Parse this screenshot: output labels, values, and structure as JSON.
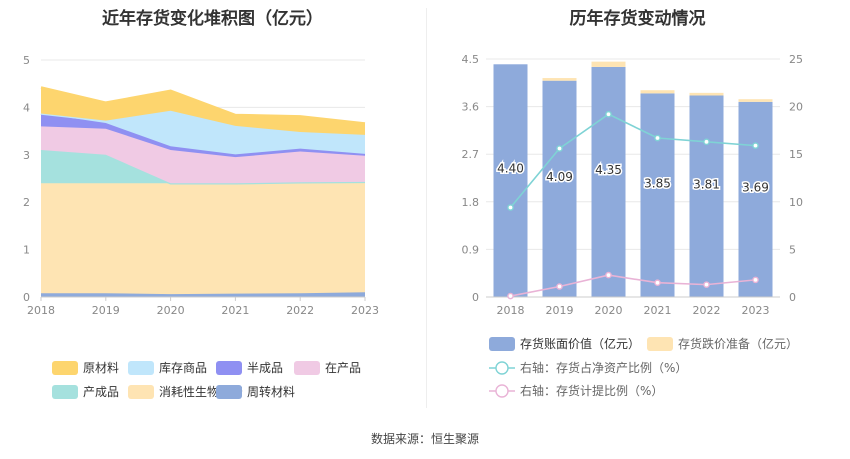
{
  "source": "数据来源：恒生聚源",
  "chart_data": [
    {
      "type": "area",
      "stacked": true,
      "title": "近年存货变化堆积图（亿元）",
      "x": [
        "2018",
        "2019",
        "2020",
        "2021",
        "2022",
        "2023"
      ],
      "ylim": [
        0,
        5
      ],
      "yticks": [
        "0",
        "1",
        "2",
        "3",
        "4",
        "5"
      ],
      "grid": true,
      "legend_position": "bottom",
      "series": [
        {
          "name": "周转材料",
          "color": "#8eaadb",
          "values": [
            0.08,
            0.08,
            0.06,
            0.07,
            0.08,
            0.1
          ]
        },
        {
          "name": "消耗性生物资产",
          "color": "#fee4b3",
          "values": [
            2.32,
            2.32,
            2.34,
            2.33,
            2.34,
            2.33
          ]
        },
        {
          "name": "产成品",
          "color": "#a5e1de",
          "values": [
            0.7,
            0.6,
            0.0,
            0.0,
            0.0,
            0.0
          ]
        },
        {
          "name": "在产品",
          "color": "#f0cae4",
          "values": [
            0.5,
            0.55,
            0.7,
            0.55,
            0.65,
            0.55
          ]
        },
        {
          "name": "半成品",
          "color": "#8f90f2",
          "values": [
            0.27,
            0.12,
            0.08,
            0.06,
            0.06,
            0.04
          ]
        },
        {
          "name": "库存商品",
          "color": "#c0e6fb",
          "values": [
            0.0,
            0.05,
            0.75,
            0.6,
            0.35,
            0.4
          ]
        },
        {
          "name": "原材料",
          "color": "#fdd56e",
          "values": [
            0.55,
            0.38,
            0.42,
            0.23,
            0.33,
            0.24
          ]
        }
      ],
      "legend_order": [
        "原材料",
        "库存商品",
        "半成品",
        "在产品",
        "产成品",
        "消耗性生物资产",
        "周转材料"
      ]
    },
    {
      "type": "bar",
      "stacked": true,
      "title": "历年存货变动情况",
      "categories": [
        "2018",
        "2019",
        "2020",
        "2021",
        "2022",
        "2023"
      ],
      "ylim": [
        0,
        4.5
      ],
      "yticks": [
        "0",
        "0.9",
        "1.8",
        "2.7",
        "3.6",
        "4.5"
      ],
      "y2lim": [
        0,
        25
      ],
      "y2ticks": [
        "0",
        "5",
        "10",
        "15",
        "20",
        "25"
      ],
      "grid": true,
      "legend_position": "bottom",
      "series": [
        {
          "name": "存货账面价值（亿元）",
          "color": "#8eaadb",
          "values": [
            4.4,
            4.09,
            4.35,
            3.85,
            3.81,
            3.69
          ],
          "labels": [
            "4.40",
            "4.09",
            "4.35",
            "3.85",
            "3.81",
            "3.69"
          ]
        },
        {
          "name": "存货跌价准备（亿元）",
          "color": "#fee4b3",
          "values": [
            0.0,
            0.05,
            0.1,
            0.06,
            0.05,
            0.05
          ]
        }
      ],
      "line_series": [
        {
          "name": "右轴：存货占净资产比例（%）",
          "color": "#7fd3d5",
          "axis": "right",
          "values": [
            9.4,
            15.6,
            19.2,
            16.7,
            16.3,
            15.9
          ]
        },
        {
          "name": "右轴：存货计提比例（%）",
          "color": "#e9b3d6",
          "axis": "right",
          "values": [
            0.1,
            1.1,
            2.3,
            1.5,
            1.3,
            1.8
          ]
        }
      ]
    }
  ]
}
